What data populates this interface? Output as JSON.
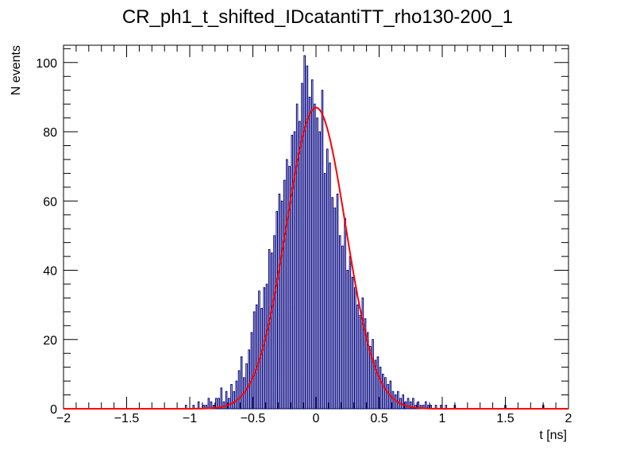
{
  "chart_data": {
    "type": "histogram",
    "title": "CR_ph1_t_shifted_IDcatantiTT_rho130-200_1",
    "xlabel": "t [ns]",
    "ylabel": "N events",
    "xlim": [
      -2,
      2
    ],
    "ylim": [
      0,
      105
    ],
    "x_ticks": [
      -2,
      -1.5,
      -1,
      -0.5,
      0,
      0.5,
      1,
      1.5,
      2
    ],
    "x_tick_labels": [
      "−2",
      "−1.5",
      "−1",
      "−0.5",
      "0",
      "0.5",
      "1",
      "1.5",
      "2"
    ],
    "y_ticks": [
      0,
      20,
      40,
      60,
      80,
      100
    ],
    "y_tick_labels": [
      "0",
      "20",
      "40",
      "60",
      "80",
      "100"
    ],
    "bin_width": 0.01,
    "hist_color": "#000080",
    "fit_color": "#ff0000",
    "fit": {
      "function": "gaus",
      "constant": 87,
      "mean": 0.0,
      "sigma": 0.235
    },
    "series": [
      {
        "name": "histogram",
        "x": [
          -1.03,
          -0.97,
          -0.93,
          -0.89,
          -0.87,
          -0.85,
          -0.83,
          -0.81,
          -0.79,
          -0.77,
          -0.75,
          -0.73,
          -0.71,
          -0.69,
          -0.67,
          -0.65,
          -0.63,
          -0.61,
          -0.59,
          -0.57,
          -0.55,
          -0.53,
          -0.51,
          -0.49,
          -0.47,
          -0.45,
          -0.43,
          -0.41,
          -0.39,
          -0.37,
          -0.35,
          -0.33,
          -0.31,
          -0.29,
          -0.27,
          -0.25,
          -0.23,
          -0.21,
          -0.19,
          -0.17,
          -0.15,
          -0.13,
          -0.11,
          -0.09,
          -0.07,
          -0.05,
          -0.03,
          -0.01,
          0.01,
          0.03,
          0.05,
          0.07,
          0.09,
          0.11,
          0.13,
          0.15,
          0.17,
          0.19,
          0.21,
          0.23,
          0.25,
          0.27,
          0.29,
          0.31,
          0.33,
          0.35,
          0.37,
          0.39,
          0.41,
          0.43,
          0.45,
          0.47,
          0.49,
          0.51,
          0.53,
          0.55,
          0.57,
          0.59,
          0.61,
          0.63,
          0.65,
          0.67,
          0.69,
          0.71,
          0.73,
          0.75,
          0.77,
          0.79,
          0.81,
          0.83,
          0.85,
          0.87,
          0.89,
          0.91,
          0.95,
          0.99,
          1.03,
          1.1,
          1.5,
          1.8
        ],
        "y": [
          1,
          1,
          2,
          1,
          1,
          3,
          2,
          1,
          3,
          3,
          6,
          2,
          5,
          3,
          7,
          5,
          8,
          11,
          15,
          9,
          13,
          17,
          22,
          28,
          30,
          34,
          29,
          35,
          36,
          46,
          45,
          50,
          57,
          62,
          60,
          66,
          72,
          70,
          79,
          80,
          88,
          83,
          94,
          102,
          99,
          90,
          95,
          88,
          84,
          80,
          92,
          68,
          75,
          71,
          61,
          58,
          62,
          50,
          47,
          55,
          40,
          44,
          38,
          35,
          30,
          27,
          32,
          26,
          22,
          18,
          20,
          14,
          15,
          12,
          10,
          9,
          7,
          8,
          5,
          4,
          5,
          3,
          4,
          2,
          3,
          2,
          3,
          1,
          2,
          1,
          1,
          2,
          1,
          1,
          1,
          1,
          1,
          1,
          1,
          1
        ]
      }
    ]
  }
}
